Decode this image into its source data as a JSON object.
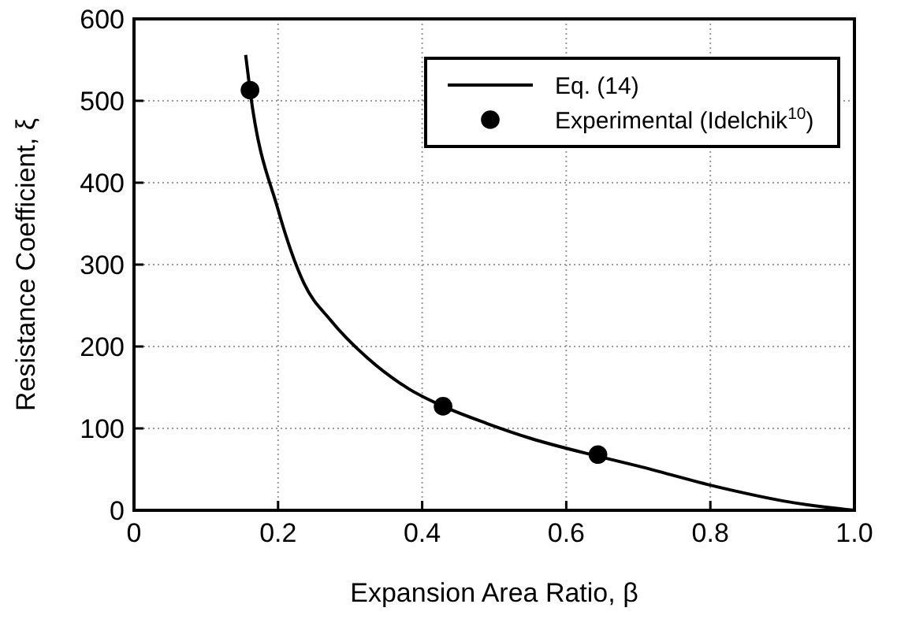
{
  "chart_data": {
    "type": "line",
    "xlabel": "Expansion Area Ratio, β",
    "ylabel": "Resistance Coefficient, ξ",
    "xlim": [
      0,
      1
    ],
    "xticks": [
      0,
      0.2,
      0.4,
      0.6,
      0.8,
      {
        "value": 1,
        "label": "1.0"
      }
    ],
    "ylim": [
      0,
      600
    ],
    "yticks": [
      0,
      100,
      200,
      300,
      400,
      500,
      600
    ],
    "grid": true,
    "legend": "top right",
    "series": [
      {
        "name": "Eq. (14)",
        "color": "#000000",
        "marker": "none",
        "line_style": "solid",
        "x": [
          0.155,
          0.161,
          0.2,
          0.236,
          0.273,
          0.324,
          0.382,
          0.429,
          0.49,
          0.55,
          0.644,
          0.7,
          0.808,
          0.911,
          1.0
        ],
        "values": [
          556,
          513,
          367,
          277,
          232,
          186,
          148,
          127,
          106,
          88,
          66,
          54,
          29,
          10,
          0
        ]
      },
      {
        "name": "Experimental (Idelchik$^{10}$)",
        "type": "scatter",
        "color": "#000000",
        "marker": "circle",
        "x": [
          0.161,
          0.429,
          0.644
        ],
        "values": [
          513,
          127,
          68
        ]
      }
    ]
  }
}
